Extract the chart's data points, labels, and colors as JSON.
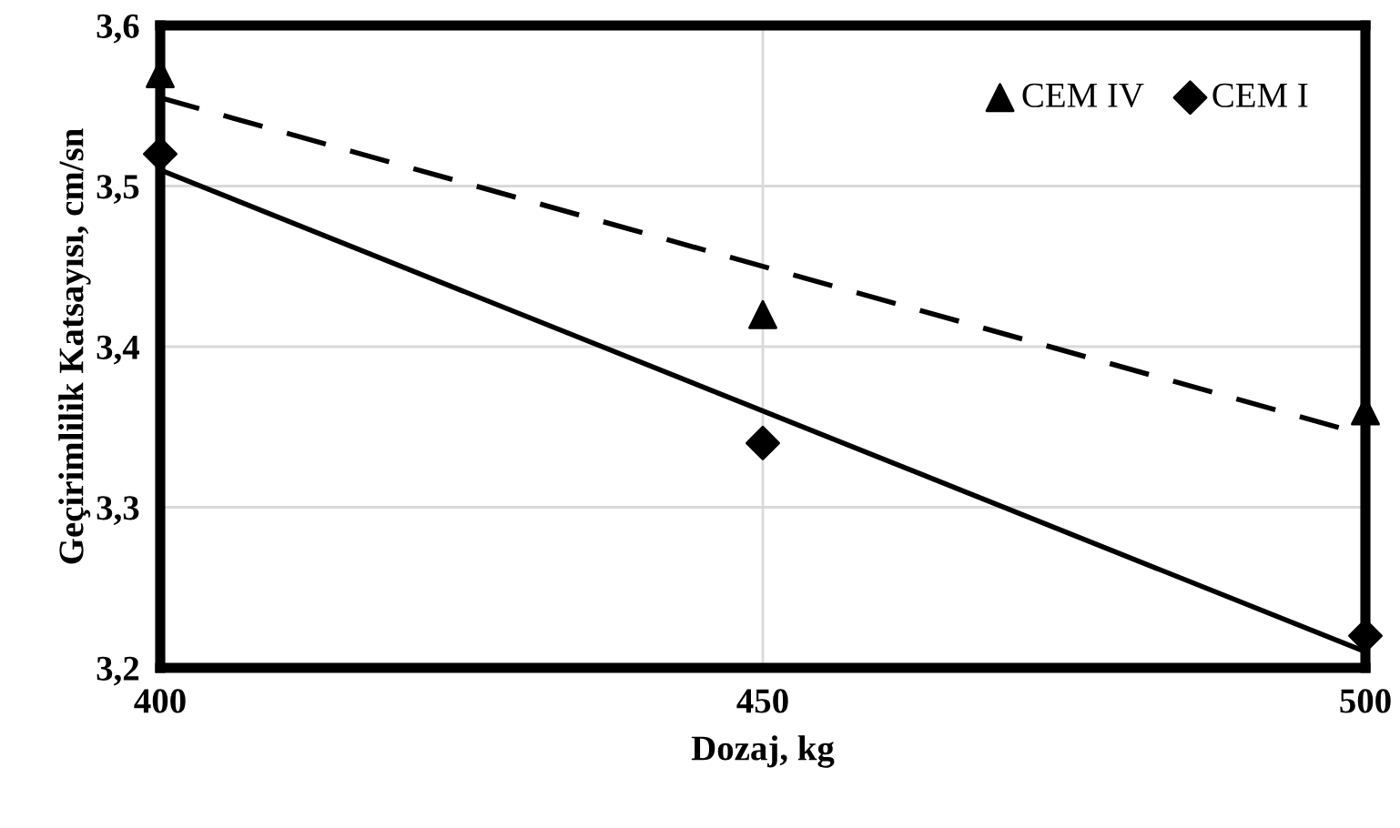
{
  "chart_data": {
    "type": "scatter",
    "xlabel": "Dozaj, kg",
    "ylabel": "Geçirimlilik Katsayısı, cm/sn",
    "xlim": [
      400,
      500
    ],
    "xticks": [
      400,
      450,
      500
    ],
    "ylim": [
      3.2,
      3.6
    ],
    "yticks": [
      {
        "value": 3.2,
        "label": "3,2"
      },
      {
        "value": 3.3,
        "label": "3,3"
      },
      {
        "value": 3.4,
        "label": "3,4"
      },
      {
        "value": 3.5,
        "label": "3,5"
      },
      {
        "value": 3.6,
        "label": "3,6"
      }
    ],
    "grid": true,
    "legend": "top right",
    "series": [
      {
        "name": "CEM IV",
        "marker": "triangle",
        "color": "#000000",
        "x": [
          400,
          450,
          500
        ],
        "values": [
          3.57,
          3.42,
          3.36
        ]
      },
      {
        "name": "CEM I",
        "marker": "diamond",
        "color": "#000000",
        "x": [
          400,
          450,
          500
        ],
        "values": [
          3.52,
          3.34,
          3.22
        ]
      },
      {
        "type": "line",
        "line_style": "dashed",
        "color": "#000000",
        "x": [
          400,
          500
        ],
        "values": [
          3.555,
          3.345
        ]
      },
      {
        "type": "line",
        "line_style": "solid",
        "color": "#000000",
        "x": [
          400,
          500
        ],
        "values": [
          3.51,
          3.21
        ]
      }
    ]
  }
}
